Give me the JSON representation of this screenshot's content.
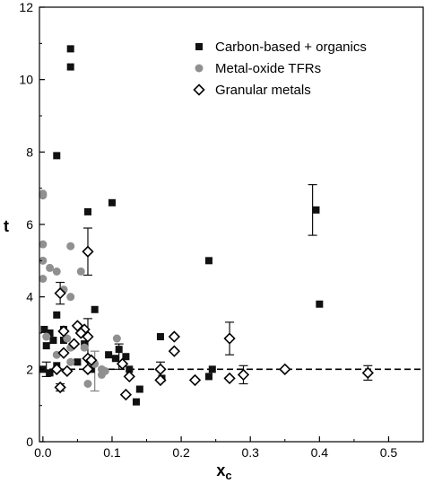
{
  "chart_data": {
    "type": "scatter",
    "title": "",
    "xlabel": "x",
    "xlabel_sub": "c",
    "ylabel": "t",
    "xlim": [
      -0.005,
      0.55
    ],
    "ylim": [
      0,
      12
    ],
    "xticks": [
      0.0,
      0.1,
      0.2,
      0.3,
      0.4,
      0.5
    ],
    "xtick_labels": [
      "0.0",
      "0.1",
      "0.2",
      "0.3",
      "0.4",
      "0.5"
    ],
    "yticks": [
      0,
      2,
      4,
      6,
      8,
      10,
      12
    ],
    "ytick_labels": [
      "0",
      "2",
      "4",
      "6",
      "8",
      "10",
      "12"
    ],
    "grid": false,
    "legend_position": "top-right",
    "reference_line": {
      "y": 2,
      "style": "dashed"
    },
    "series": [
      {
        "name": "Carbon-based + organics",
        "marker": "filled-square",
        "color": "#111111",
        "points": [
          [
            0.04,
            10.85
          ],
          [
            0.04,
            10.35
          ],
          [
            0.02,
            7.9
          ],
          [
            0.1,
            6.6
          ],
          [
            0.065,
            6.35
          ],
          [
            0.24,
            5.0
          ],
          [
            0.395,
            6.4
          ],
          [
            0.4,
            3.8
          ],
          [
            0.075,
            3.65
          ],
          [
            0.02,
            3.5
          ],
          [
            0.002,
            3.1
          ],
          [
            0.01,
            3.0
          ],
          [
            0.03,
            3.1
          ],
          [
            0.17,
            2.9
          ],
          [
            0.005,
            2.65
          ],
          [
            0.015,
            2.8
          ],
          [
            0.03,
            2.8
          ],
          [
            0.06,
            2.7
          ],
          [
            0.11,
            2.55
          ],
          [
            0.12,
            2.35
          ],
          [
            0.095,
            2.4
          ],
          [
            0.105,
            2.3
          ],
          [
            0.05,
            2.2
          ],
          [
            0.02,
            2.1
          ],
          [
            0.0,
            2.0
          ],
          [
            0.01,
            1.9
          ],
          [
            0.07,
            2.0
          ],
          [
            0.125,
            2.0
          ],
          [
            0.245,
            2.0
          ],
          [
            0.24,
            1.8
          ],
          [
            0.172,
            1.75
          ],
          [
            0.14,
            1.45
          ],
          [
            0.135,
            1.1
          ]
        ]
      },
      {
        "name": "Metal-oxide TFRs",
        "marker": "filled-circle",
        "color": "#909090",
        "points": [
          [
            0.0,
            6.85
          ],
          [
            0.0,
            6.8
          ],
          [
            0.0,
            5.45
          ],
          [
            0.0,
            5.0
          ],
          [
            0.04,
            5.4
          ],
          [
            0.01,
            4.8
          ],
          [
            0.02,
            4.7
          ],
          [
            0.055,
            4.7
          ],
          [
            0.0,
            4.5
          ],
          [
            0.03,
            4.2
          ],
          [
            0.04,
            4.0
          ],
          [
            0.04,
            2.6
          ],
          [
            0.005,
            2.9
          ],
          [
            0.035,
            2.85
          ],
          [
            0.107,
            2.85
          ],
          [
            0.06,
            2.6
          ],
          [
            0.02,
            2.4
          ],
          [
            0.04,
            2.2
          ],
          [
            0.075,
            2.15
          ],
          [
            0.085,
            2.0
          ],
          [
            0.09,
            1.95
          ],
          [
            0.085,
            1.85
          ],
          [
            0.065,
            1.6
          ]
        ]
      },
      {
        "name": "Granular metals",
        "marker": "open-diamond",
        "color": "#000000",
        "points": [
          [
            0.065,
            5.25
          ],
          [
            0.025,
            4.1
          ],
          [
            0.05,
            3.2
          ],
          [
            0.06,
            3.1
          ],
          [
            0.03,
            3.05
          ],
          [
            0.055,
            3.0
          ],
          [
            0.065,
            2.9
          ],
          [
            0.19,
            2.9
          ],
          [
            0.045,
            2.7
          ],
          [
            0.27,
            2.85
          ],
          [
            0.19,
            2.5
          ],
          [
            0.03,
            2.45
          ],
          [
            0.065,
            2.3
          ],
          [
            0.07,
            2.25
          ],
          [
            0.115,
            2.15
          ],
          [
            0.02,
            2.0
          ],
          [
            0.035,
            1.95
          ],
          [
            0.065,
            2.0
          ],
          [
            0.17,
            2.0
          ],
          [
            0.35,
            2.0
          ],
          [
            0.47,
            1.9
          ],
          [
            0.29,
            1.85
          ],
          [
            0.125,
            1.8
          ],
          [
            0.17,
            1.7
          ],
          [
            0.22,
            1.7
          ],
          [
            0.27,
            1.75
          ],
          [
            0.025,
            1.5
          ],
          [
            0.12,
            1.3
          ]
        ]
      }
    ],
    "error_bars": [
      {
        "x": 0.39,
        "y": 6.4,
        "low": 5.7,
        "high": 7.1,
        "color": "#111111"
      },
      {
        "x": 0.065,
        "y": 5.25,
        "low": 4.6,
        "high": 5.9,
        "color": "#111111"
      },
      {
        "x": 0.025,
        "y": 4.1,
        "low": 3.8,
        "high": 4.4,
        "color": "#111111"
      },
      {
        "x": 0.27,
        "y": 2.85,
        "low": 2.4,
        "high": 3.3,
        "color": "#111111"
      },
      {
        "x": 0.29,
        "y": 1.85,
        "low": 1.6,
        "high": 2.1,
        "color": "#111111"
      },
      {
        "x": 0.47,
        "y": 1.9,
        "low": 1.7,
        "high": 2.1,
        "color": "#111111"
      },
      {
        "x": 0.17,
        "y": 1.95,
        "low": 1.7,
        "high": 2.2,
        "color": "#111111"
      },
      {
        "x": 0.11,
        "y": 2.35,
        "low": 2.0,
        "high": 2.7,
        "color": "#111111"
      },
      {
        "x": 0.075,
        "y": 1.9,
        "low": 1.4,
        "high": 2.5,
        "color": "#808080"
      },
      {
        "x": 0.065,
        "y": 2.85,
        "low": 2.0,
        "high": 3.4,
        "color": "#111111"
      },
      {
        "x": 0.005,
        "y": 2.0,
        "low": 1.8,
        "high": 2.2,
        "color": "#111111"
      },
      {
        "x": 0.025,
        "y": 1.5,
        "low": 1.4,
        "high": 1.6,
        "color": "#111111"
      }
    ]
  }
}
